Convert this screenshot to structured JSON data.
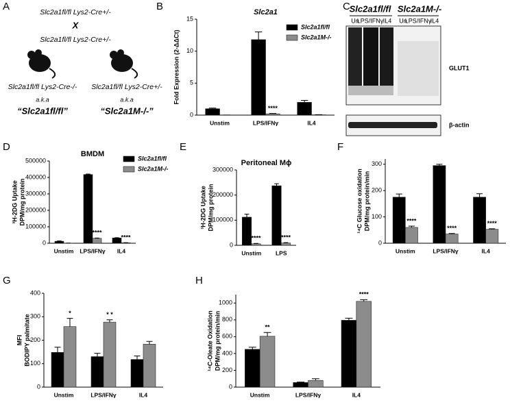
{
  "panel_a": {
    "panel": "A",
    "cross": {
      "parent1": "Slc2a1fl/fl Lys2-Cre+/-",
      "symbol": "X",
      "parent2": "Slc2a1fl/fl Lys2-Cre+/-"
    },
    "offspring": [
      {
        "genotype": "Slc2a1fl/fl Lys2-Cre-/-",
        "aka": "a.k.a",
        "alias": "“Slc2a1fl/fl”"
      },
      {
        "genotype": "Slc2a1fl/fl Lys2-Cre+/-",
        "aka": "a.k.a",
        "alias": "“Slc2a1M-/-”"
      }
    ]
  },
  "panel_c": {
    "panel": "C",
    "groups": [
      "Slc2a1fl/fl",
      "Slc2a1M-/-"
    ],
    "lanes": [
      "Un",
      "LPS/IFNγ",
      "IL4",
      "Un",
      "LPS/IFNγ",
      "IL4"
    ],
    "bands": [
      "GLUT1",
      "β-actin"
    ]
  },
  "chart_data": [
    {
      "type": "bar",
      "panel": "B",
      "title": "Slc2a1",
      "ylabel": [
        "Fold Expression (2-ΔΔCt)"
      ],
      "categories": [
        "Unstim",
        "LPS/IFNγ",
        "IL4"
      ],
      "series": [
        {
          "name": "Slc2a1fl/fl",
          "color": "#000000",
          "values": [
            1,
            11.8,
            2
          ],
          "errors": [
            0.1,
            1.2,
            0.3
          ]
        },
        {
          "name": "Slc2a1M-/-",
          "color": "#8c8c8c",
          "values": [
            0,
            0.2,
            0.05
          ],
          "errors": [
            0.02,
            0.05,
            0.02
          ]
        }
      ],
      "ylim": [
        0,
        15
      ],
      "yticks": [
        0,
        5,
        10,
        15
      ],
      "annotations": [
        {
          "text": "****",
          "category": 1,
          "series": 1
        }
      ]
    },
    {
      "type": "bar",
      "panel": "D",
      "title": "BMDM",
      "ylabel": [
        "³H-2DG Uptake",
        "DPM/mg protein"
      ],
      "categories": [
        "Unstim",
        "LPS/IFNγ",
        "IL4"
      ],
      "series": [
        {
          "name": "Slc2a1fl/fl",
          "color": "#000000",
          "values": [
            12000,
            418000,
            32000
          ],
          "errors": [
            2000,
            3000,
            2000
          ]
        },
        {
          "name": "Slc2a1M-/-",
          "color": "#8c8c8c",
          "values": [
            1000,
            30000,
            3000
          ],
          "errors": [
            300,
            2000,
            500
          ]
        }
      ],
      "ylim": [
        0,
        500000
      ],
      "yticks": [
        0,
        100000,
        200000,
        300000,
        400000,
        500000
      ],
      "annotations": [
        {
          "text": "****",
          "category": 1,
          "series": 1
        },
        {
          "text": "****",
          "category": 2,
          "series": 1
        }
      ]
    },
    {
      "type": "bar",
      "panel": "E",
      "title": "Peritoneal Mϕ",
      "ylabel": [
        "³H-2DG Uptake",
        "DPM/mg protein"
      ],
      "categories": [
        "Unstim",
        "LPS"
      ],
      "series": [
        {
          "color": "#000000",
          "values": [
            112000,
            237000
          ],
          "errors": [
            12000,
            8000
          ]
        },
        {
          "color": "#8c8c8c",
          "values": [
            6000,
            9000
          ],
          "errors": [
            1500,
            1500
          ]
        }
      ],
      "ylim": [
        0,
        300000
      ],
      "yticks": [
        0,
        100000,
        200000,
        300000
      ],
      "annotations": [
        {
          "text": "****",
          "category": 0,
          "series": 1
        },
        {
          "text": "****",
          "category": 1,
          "series": 1
        }
      ]
    },
    {
      "type": "bar",
      "panel": "F",
      "ylabel": [
        "¹⁴C Glucose oxidation",
        "DPM/mg protein/min"
      ],
      "categories": [
        "Unstim",
        "LPS/IFNγ",
        "IL4"
      ],
      "series": [
        {
          "color": "#000000",
          "values": [
            175,
            295,
            175
          ],
          "errors": [
            12,
            5,
            13
          ]
        },
        {
          "color": "#8c8c8c",
          "values": [
            60,
            35,
            53
          ],
          "errors": [
            5,
            2,
            2
          ]
        }
      ],
      "ylim": [
        0,
        320
      ],
      "yticks": [
        0,
        100,
        200,
        300
      ],
      "annotations": [
        {
          "text": "****",
          "category": 0,
          "series": 1
        },
        {
          "text": "****",
          "category": 1,
          "series": 1
        },
        {
          "text": "****",
          "category": 2,
          "series": 1
        }
      ]
    },
    {
      "type": "bar",
      "panel": "G",
      "ylabel": [
        "MFI",
        "BODIPY palmitate"
      ],
      "categories": [
        "Unstim",
        "LPS/IFNγ",
        "IL4"
      ],
      "series": [
        {
          "color": "#000000",
          "values": [
            148,
            130,
            118
          ],
          "errors": [
            22,
            14,
            15
          ]
        },
        {
          "color": "#8c8c8c",
          "values": [
            258,
            277,
            183
          ],
          "errors": [
            35,
            10,
            12
          ]
        }
      ],
      "ylim": [
        0,
        400
      ],
      "yticks": [
        0,
        100,
        200,
        300,
        400
      ],
      "annotations": [
        {
          "text": "*",
          "category": 0,
          "series": 1
        },
        {
          "text": "* *",
          "category": 1,
          "series": 1
        }
      ]
    },
    {
      "type": "bar",
      "panel": "H",
      "ylabel": [
        "¹⁴C-Oleate Oxidation",
        "DPM/mg protein/min"
      ],
      "categories": [
        "Unstim",
        "LPS/IFNγ",
        "IL4"
      ],
      "series": [
        {
          "color": "#000000",
          "values": [
            450,
            55,
            795
          ],
          "errors": [
            25,
            5,
            25
          ]
        },
        {
          "color": "#8c8c8c",
          "values": [
            605,
            80,
            1020
          ],
          "errors": [
            45,
            20,
            20
          ]
        }
      ],
      "ylim": [
        0,
        1100
      ],
      "yticks": [
        0,
        200,
        400,
        600,
        800,
        1000
      ],
      "annotations": [
        {
          "text": "**",
          "category": 0,
          "series": 1
        },
        {
          "text": "****",
          "category": 2,
          "series": 1
        }
      ]
    }
  ]
}
